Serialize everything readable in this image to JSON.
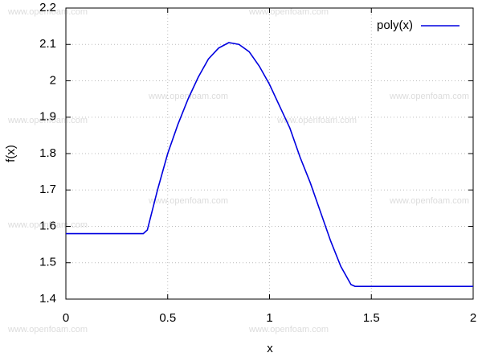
{
  "chart_data": {
    "type": "line",
    "xlabel": "x",
    "ylabel": "f(x)",
    "watermark": "www.openfoam.com",
    "x": [
      0,
      0.38,
      0.4,
      0.45,
      0.5,
      0.55,
      0.6,
      0.65,
      0.7,
      0.75,
      0.8,
      0.85,
      0.9,
      0.95,
      1.0,
      1.05,
      1.1,
      1.15,
      1.2,
      1.25,
      1.3,
      1.35,
      1.4,
      1.42,
      2.0
    ],
    "series": [
      {
        "name": "poly(x)",
        "color": "#0000e0",
        "values": [
          1.58,
          1.58,
          1.59,
          1.7,
          1.8,
          1.88,
          1.95,
          2.01,
          2.06,
          2.09,
          2.105,
          2.1,
          2.08,
          2.04,
          1.99,
          1.93,
          1.87,
          1.79,
          1.72,
          1.64,
          1.56,
          1.49,
          1.44,
          1.435,
          1.435
        ]
      }
    ],
    "xlim": [
      0,
      2
    ],
    "xticks": [
      0,
      0.5,
      1,
      1.5,
      2
    ],
    "ylim": [
      1.4,
      2.2
    ],
    "yticks": [
      1.4,
      1.5,
      1.6,
      1.7,
      1.8,
      1.9,
      2,
      2.1,
      2.2
    ],
    "grid": true,
    "legend": "top-right"
  }
}
